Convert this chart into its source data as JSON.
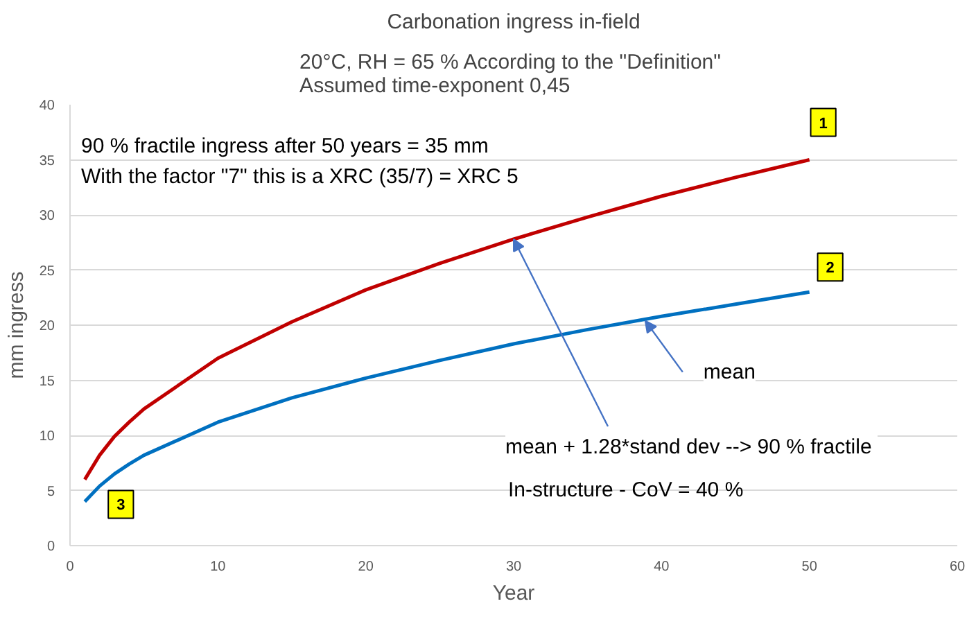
{
  "chart_data": {
    "type": "line",
    "title": "Carbonation ingress in-field",
    "subtitle": "20°C, RH = 65 %  According to the \"Definition\"\nAssumed time-exponent 0,45",
    "xlabel": "Year",
    "ylabel": "mm ingress",
    "x": [
      1,
      2,
      3,
      4,
      5,
      10,
      15,
      20,
      25,
      30,
      35,
      40,
      45,
      50
    ],
    "series": [
      {
        "color": "#c00000",
        "values": [
          6.0,
          8.2,
          9.9,
          11.2,
          12.4,
          17.0,
          20.3,
          23.2,
          25.6,
          27.8,
          29.8,
          31.7,
          33.4,
          35.0
        ]
      },
      {
        "color": "#0070c0",
        "values": [
          4.0,
          5.4,
          6.5,
          7.4,
          8.2,
          11.2,
          13.4,
          15.2,
          16.8,
          18.3,
          19.6,
          20.8,
          21.9,
          23.0
        ]
      }
    ],
    "xlim": [
      0,
      60
    ],
    "xticks": [
      0,
      10,
      20,
      30,
      40,
      50,
      60
    ],
    "ylim": [
      0,
      40
    ],
    "yticks": [
      0,
      5,
      10,
      15,
      20,
      25,
      30,
      35,
      40
    ],
    "grid": "y",
    "marker": "none",
    "line_style": "solid",
    "annotations": [
      "90 % fractile ingress after 50 years = 35 mm",
      "With the factor \"7\" this is a XRC (35/7) = XRC 5",
      {
        "text": "mean + 1.28*stand dev  --> 90 % fractile",
        "x": 30,
        "y": 27.8
      },
      {
        "text": "mean",
        "x": 38.9,
        "y": 20.4
      },
      "In-structure - CoV = 40 %",
      {
        "text": "1",
        "x": 50,
        "y": 35
      },
      {
        "text": "2",
        "x": 50,
        "y": 23
      },
      {
        "text": "3",
        "x": 1,
        "y": 4
      }
    ]
  }
}
